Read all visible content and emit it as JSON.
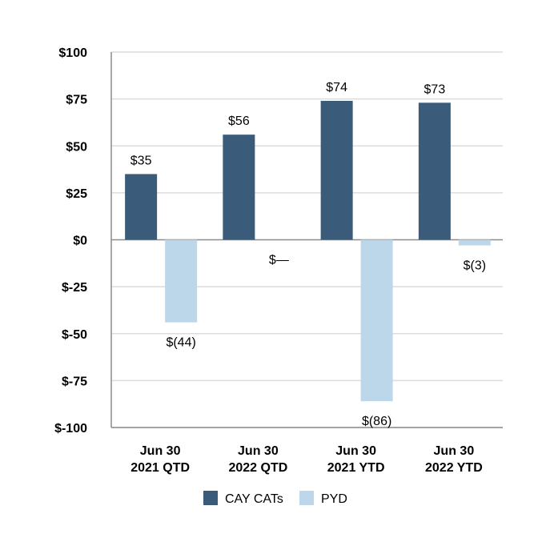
{
  "chart_data": {
    "type": "bar",
    "title": "",
    "xlabel": "",
    "ylabel": "",
    "ylim": [
      -100,
      100
    ],
    "yticks": [
      100,
      75,
      50,
      25,
      0,
      -25,
      -50,
      -75,
      -100
    ],
    "ytick_labels": [
      "$100",
      "$75",
      "$50",
      "$25",
      "$0",
      "$-25",
      "$-50",
      "$-75",
      "$-100"
    ],
    "categories": [
      [
        "Jun 30",
        "2021 QTD"
      ],
      [
        "Jun 30",
        "2022 QTD"
      ],
      [
        "Jun 30",
        "2021 YTD"
      ],
      [
        "Jun 30",
        "2022 YTD"
      ]
    ],
    "series": [
      {
        "name": "CAY CATs",
        "color": "#3b5b7a",
        "values": [
          35,
          56,
          74,
          73
        ],
        "labels": [
          "$35",
          "$56",
          "$74",
          "$73"
        ]
      },
      {
        "name": "PYD",
        "color": "#bcd7ea",
        "values": [
          -44,
          0,
          -86,
          -3
        ],
        "labels": [
          "$(44)",
          "$—",
          "$(86)",
          "$(3)"
        ]
      }
    ],
    "grid": true,
    "legend_position": "bottom-center"
  }
}
